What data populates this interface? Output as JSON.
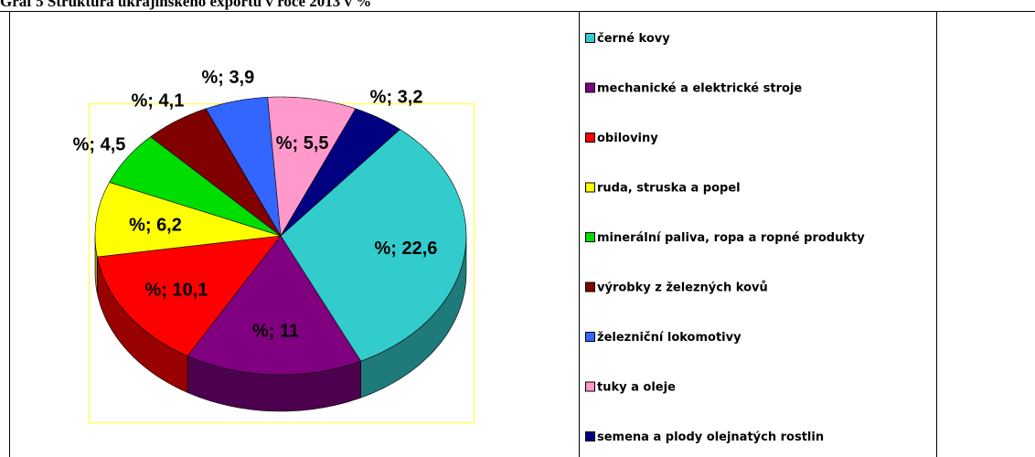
{
  "chart_data": {
    "type": "pie",
    "title": "Graf 5 Struktura ukrajinského exportu v roce 2013 v %",
    "categories": [
      "černé kovy",
      "mechanické a elektrické stroje",
      "obiloviny",
      "ruda, struska a popel",
      "minerální paliva, ropa a ropné produkty",
      "výrobky z železných kovů",
      "železniční lokomotivy",
      "tuky a oleje",
      "semena a plody olejnatých rostlin"
    ],
    "values": [
      22.6,
      11,
      10.1,
      6.2,
      4.5,
      4.1,
      3.9,
      5.5,
      3.2
    ],
    "value_labels": [
      "%; 22,6",
      "%; 11",
      "%; 10,1",
      "%; 6,2",
      "%; 4,5",
      "%; 4,1",
      "%; 3,9",
      "%; 5,5",
      "%; 3,2"
    ],
    "colors": [
      "#33cccc",
      "#800080",
      "#ff0000",
      "#ffff00",
      "#00dd00",
      "#800000",
      "#3366ff",
      "#ff99cc",
      "#000080"
    ],
    "legend": "right"
  }
}
